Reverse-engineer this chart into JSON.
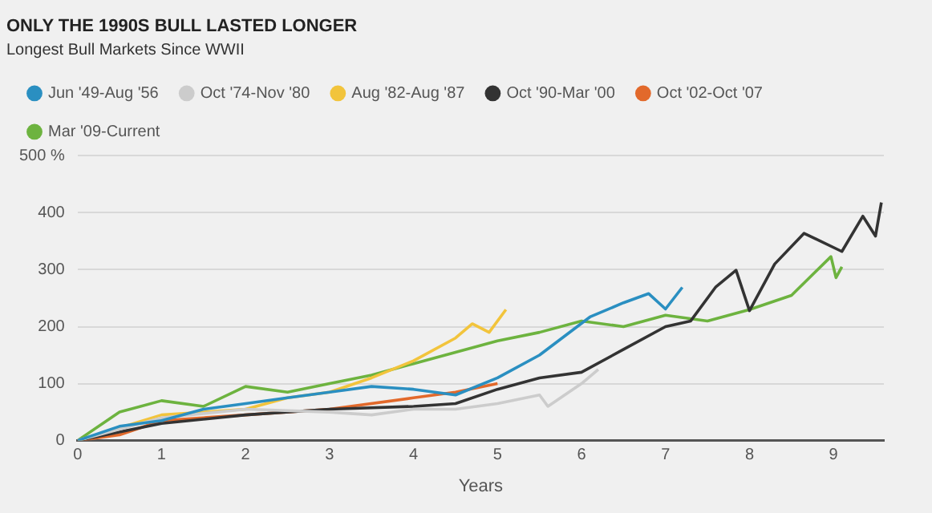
{
  "chart_data": {
    "type": "line",
    "title": "ONLY THE 1990S BULL LASTED LONGER",
    "subtitle": "Longest Bull Markets Since WWII",
    "xlabel": "Years",
    "xlim": [
      0,
      9.6
    ],
    "xticks": [
      0,
      1,
      2,
      3,
      4,
      5,
      6,
      7,
      8,
      9
    ],
    "ylim": [
      0,
      500
    ],
    "yticks": [
      0,
      100,
      200,
      300,
      400,
      {
        "value": 500,
        "label": "500 %"
      }
    ],
    "grid": "y",
    "legend": "top left",
    "marker": "none",
    "line_style": "solid",
    "series": [
      {
        "name": "Jun '49-Aug '56",
        "color": "#2a8fc1",
        "x": [
          0,
          0.5,
          1,
          1.5,
          2,
          2.5,
          3,
          3.5,
          4,
          4.5,
          5,
          5.5,
          6.1,
          6.5,
          6.8,
          7,
          7.2
        ],
        "values": [
          0,
          25,
          35,
          55,
          65,
          75,
          85,
          95,
          90,
          80,
          110,
          150,
          217,
          242,
          258,
          231,
          269
        ]
      },
      {
        "name": "Oct '74-Nov '80",
        "color": "#cccccc",
        "x": [
          0,
          1,
          2,
          3,
          3.5,
          4,
          4.5,
          5,
          5.5,
          5.6,
          6,
          6.2
        ],
        "values": [
          0,
          40,
          55,
          50,
          45,
          55,
          55,
          65,
          80,
          60,
          100,
          125
        ]
      },
      {
        "name": "Aug '82-Aug '87",
        "color": "#f2c43c",
        "x": [
          0,
          1,
          2,
          2.5,
          3,
          3.5,
          4,
          4.5,
          4.7,
          4.9,
          5.1
        ],
        "values": [
          0,
          45,
          55,
          75,
          85,
          110,
          140,
          180,
          205,
          190,
          230
        ]
      },
      {
        "name": "Oct '90-Mar '00",
        "color": "#333333",
        "x": [
          0,
          1,
          2,
          3,
          4,
          4.5,
          5,
          5.5,
          6,
          6.5,
          7,
          7.3,
          7.6,
          7.84,
          8,
          8.3,
          8.65,
          9.1,
          9.35,
          9.5,
          9.57
        ],
        "values": [
          0,
          30,
          45,
          55,
          60,
          65,
          90,
          110,
          120,
          160,
          200,
          210,
          270,
          299,
          228,
          310,
          364,
          332,
          394,
          359,
          418
        ]
      },
      {
        "name": "Oct '02-Oct '07",
        "color": "#e2692b",
        "x": [
          0,
          0.5,
          1,
          2,
          3,
          4,
          4.5,
          5
        ],
        "values": [
          0,
          10,
          35,
          45,
          55,
          75,
          85,
          100
        ]
      },
      {
        "name": "Mar '09-Current",
        "color": "#6db33f",
        "x": [
          0,
          0.5,
          1,
          1.5,
          2,
          2.5,
          3,
          3.5,
          4,
          4.5,
          5,
          5.5,
          6,
          6.5,
          7,
          7.5,
          8,
          8.5,
          8.97,
          9.03,
          9.1
        ],
        "values": [
          0,
          50,
          70,
          60,
          95,
          85,
          100,
          115,
          135,
          155,
          175,
          190,
          210,
          200,
          220,
          210,
          230,
          255,
          323,
          286,
          305
        ]
      }
    ]
  }
}
